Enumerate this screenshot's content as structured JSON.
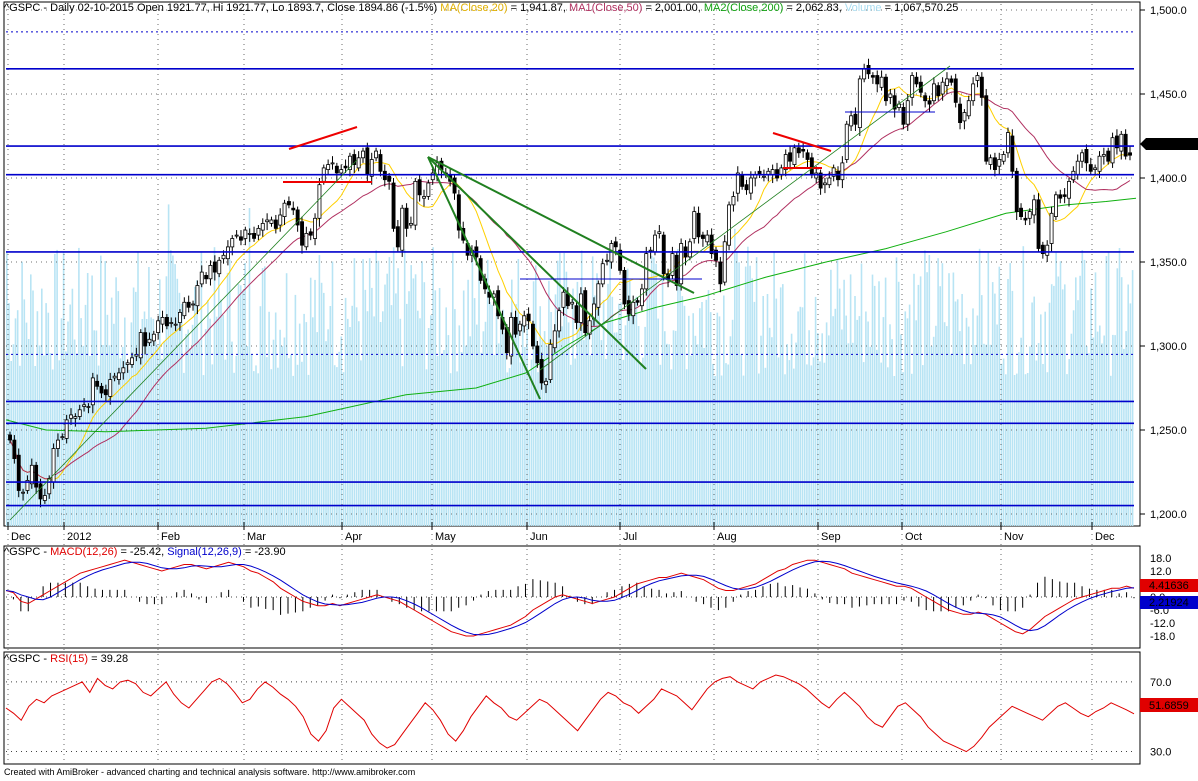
{
  "price_header": {
    "symbol": "^GSPC",
    "desc": "Daily 02-10-2015 Open 1921.77, Hi 1921.77, Lo 1893.7, Close 1894.86 (-1.5%)",
    "ma_label": "MA(Close,20)",
    "ma_value": "= 1,941.87,",
    "ma1_label": "MA1(Close,50)",
    "ma1_value": "= 2,001.00,",
    "ma2_label": "MA2(Close,200)",
    "ma2_value": "= 2,062.83,",
    "vol_label": "Volume",
    "vol_value": "= 1,067,570.25"
  },
  "macd_header": {
    "symbol": "^GSPC -",
    "macd_label": "MACD(12,26)",
    "macd_value": "= -25.42,",
    "signal_label": "Signal(12,26,9)",
    "signal_value": "= -23.90"
  },
  "rsi_header": {
    "symbol": "^GSPC -",
    "rsi_label": "RSI(15)",
    "rsi_value": "= 39.28"
  },
  "footer": "Created with AmiBroker - advanced charting and technical analysis software. http://www.amibroker.com",
  "colors": {
    "price": "#000000",
    "ma20": "#ffd000",
    "ma50": "#b03060",
    "ma200": "#10b010",
    "volume": "#b8e4f4",
    "hline": "#0000cc",
    "macd": "#e00000",
    "signal": "#0000cc",
    "rsi": "#e00000",
    "red_trend": "#ee0000",
    "green_trend": "#208020"
  },
  "chart_data": [
    {
      "type": "candlestick",
      "title": "^GSPC Daily",
      "x_labels": [
        "Dec",
        "2012",
        "Feb",
        "Mar",
        "Apr",
        "May",
        "Jun",
        "Jul",
        "Aug",
        "Sep",
        "Oct",
        "Nov",
        "Dec"
      ],
      "y_ticks": [
        "1,500.0",
        "1,450.0",
        "1,400.0",
        "1,350.0",
        "1,300.0",
        "1,250.0",
        "1,200.0"
      ],
      "ylim": [
        1195,
        1505
      ],
      "last_price": "1,413.58",
      "horizontal_levels": [
        1465,
        1419,
        1402,
        1356,
        1267,
        1254,
        1219,
        1205
      ],
      "dotted_levels": [
        1487,
        1295
      ],
      "closes": [
        1244,
        1233,
        1214,
        1213,
        1220,
        1229,
        1216,
        1209,
        1211,
        1221,
        1239,
        1244,
        1246,
        1256,
        1259,
        1258,
        1262,
        1265,
        1264,
        1281,
        1276,
        1272,
        1271,
        1280,
        1282,
        1284,
        1287,
        1290,
        1293,
        1295,
        1308,
        1300,
        1304,
        1307,
        1315,
        1317,
        1312,
        1314,
        1313,
        1320,
        1326,
        1323,
        1325,
        1336,
        1344,
        1340,
        1348,
        1344,
        1351,
        1354,
        1359,
        1364,
        1366,
        1363,
        1369,
        1367,
        1364,
        1370,
        1373,
        1375,
        1375,
        1370,
        1378,
        1385,
        1384,
        1381,
        1372,
        1360,
        1367,
        1366,
        1376,
        1396,
        1406,
        1408,
        1409,
        1403,
        1405,
        1406,
        1413,
        1408,
        1412,
        1416,
        1402,
        1411,
        1416,
        1404,
        1399,
        1398,
        1370,
        1359,
        1382,
        1370,
        1373,
        1398,
        1390,
        1389,
        1397,
        1403,
        1409,
        1405,
        1402,
        1398,
        1391,
        1369,
        1363,
        1354,
        1357,
        1353,
        1339,
        1334,
        1329,
        1331,
        1318,
        1310,
        1296,
        1317,
        1307,
        1313,
        1318,
        1315,
        1300,
        1290,
        1278,
        1279,
        1301,
        1309,
        1321,
        1332,
        1324,
        1326,
        1314,
        1331,
        1308,
        1315,
        1325,
        1337,
        1349,
        1351,
        1361,
        1359,
        1345,
        1325,
        1319,
        1326,
        1326,
        1334,
        1355,
        1357,
        1366,
        1368,
        1343,
        1340,
        1355,
        1336,
        1361,
        1353,
        1362,
        1380,
        1365,
        1364,
        1366,
        1355,
        1351,
        1337,
        1362,
        1384,
        1389,
        1403,
        1395,
        1393,
        1400,
        1402,
        1402,
        1401,
        1404,
        1405,
        1400,
        1406,
        1414,
        1410,
        1418,
        1415,
        1416,
        1411,
        1402,
        1403,
        1394,
        1397,
        1400,
        1406,
        1399,
        1409,
        1432,
        1437,
        1432,
        1459,
        1465,
        1462,
        1460,
        1456,
        1460,
        1446,
        1450,
        1441,
        1444,
        1432,
        1446,
        1461,
        1456,
        1451,
        1446,
        1444,
        1456,
        1449,
        1457,
        1459,
        1457,
        1445,
        1433,
        1439,
        1446,
        1456,
        1461,
        1448,
        1410,
        1412,
        1405,
        1411,
        1414,
        1427,
        1404,
        1380,
        1377,
        1375,
        1380,
        1387,
        1358,
        1355,
        1360,
        1379,
        1390,
        1388,
        1389,
        1398,
        1404,
        1410,
        1415,
        1409,
        1404,
        1406,
        1413,
        1414,
        1410,
        1424,
        1418,
        1426,
        1413,
        1413.58
      ],
      "ma200_points": [
        [
          0,
          1256
        ],
        [
          40,
          1250
        ],
        [
          100,
          1249
        ],
        [
          200,
          1251
        ],
        [
          300,
          1258
        ],
        [
          400,
          1271
        ],
        [
          470,
          1275
        ],
        [
          520,
          1284
        ],
        [
          560,
          1300
        ],
        [
          600,
          1314
        ],
        [
          650,
          1323
        ],
        [
          700,
          1330
        ],
        [
          760,
          1341
        ],
        [
          820,
          1350
        ],
        [
          880,
          1358
        ],
        [
          940,
          1368
        ],
        [
          1000,
          1379
        ],
        [
          1060,
          1384
        ],
        [
          1100,
          1386
        ],
        [
          1130,
          1388
        ]
      ]
    },
    {
      "type": "bar",
      "title": "Volume",
      "note": "light blue volume histogram behind price"
    },
    {
      "type": "line",
      "title": "MACD(12,26), Signal(12,26,9)",
      "y_ticks": [
        "18.0",
        "12.0",
        "6.0",
        "0.0",
        "-6.0",
        "-12.0",
        "-18.0"
      ],
      "ylim": [
        -21,
        21
      ],
      "last_macd": "4.41636",
      "last_signal": "2.21924",
      "macd": [
        3,
        2,
        -2,
        -3,
        -1,
        1,
        3,
        5,
        7,
        9,
        11,
        12,
        13,
        14,
        15,
        16,
        17,
        16,
        15,
        14,
        13,
        12,
        13,
        14,
        15,
        15,
        14,
        13,
        14,
        15,
        16,
        15,
        14,
        12,
        11,
        9,
        7,
        4,
        2,
        0,
        -2,
        -3,
        -4,
        -4,
        -3,
        -4,
        -3,
        -2,
        -1,
        0,
        1,
        0,
        -1,
        -2,
        -4,
        -6,
        -8,
        -10,
        -12,
        -14,
        -16,
        -17,
        -18,
        -18,
        -17,
        -16,
        -15,
        -14,
        -13,
        -11,
        -9,
        -6,
        -4,
        -2,
        0,
        1,
        0,
        -1,
        -2,
        -3,
        -2,
        -1,
        0,
        2,
        4,
        6,
        7,
        8,
        9,
        9,
        10,
        11,
        10,
        9,
        8,
        6,
        4,
        3,
        3,
        4,
        5,
        6,
        8,
        10,
        12,
        13,
        15,
        16,
        17,
        17,
        16,
        15,
        14,
        13,
        11,
        10,
        9,
        8,
        7,
        6,
        5,
        5,
        4,
        2,
        0,
        -2,
        -4,
        -6,
        -7,
        -8,
        -8,
        -7,
        -8,
        -10,
        -12,
        -14,
        -16,
        -17,
        -15,
        -12,
        -9,
        -7,
        -5,
        -3,
        -1,
        0,
        1,
        2,
        3,
        4,
        4,
        5,
        4
      ]
    },
    {
      "type": "line",
      "title": "RSI(15)",
      "y_ticks": [
        "70.0",
        "30.0"
      ],
      "ylim": [
        22,
        80
      ],
      "last_value": "51.6859",
      "values": [
        55,
        52,
        48,
        56,
        60,
        58,
        62,
        64,
        66,
        68,
        70,
        64,
        72,
        68,
        66,
        70,
        71,
        69,
        64,
        62,
        66,
        70,
        63,
        58,
        55,
        60,
        65,
        70,
        72,
        69,
        64,
        58,
        60,
        66,
        70,
        67,
        63,
        60,
        56,
        50,
        40,
        36,
        42,
        55,
        60,
        56,
        52,
        48,
        40,
        35,
        32,
        34,
        40,
        46,
        52,
        58,
        54,
        48,
        40,
        36,
        42,
        50,
        56,
        62,
        58,
        55,
        50,
        48,
        52,
        56,
        60,
        58,
        54,
        50,
        46,
        42,
        48,
        54,
        60,
        64,
        62,
        58,
        56,
        52,
        56,
        60,
        66,
        64,
        62,
        58,
        54,
        60,
        66,
        70,
        72,
        73,
        70,
        68,
        66,
        70,
        72,
        74,
        73,
        71,
        69,
        66,
        62,
        58,
        55,
        60,
        64,
        60,
        56,
        50,
        46,
        44,
        50,
        56,
        58,
        54,
        50,
        44,
        40,
        36,
        34,
        32,
        30,
        33,
        38,
        44,
        48,
        52,
        56,
        54,
        52,
        50,
        48,
        52,
        56,
        58,
        55,
        52,
        50,
        53,
        55,
        58,
        56,
        54,
        51.7
      ]
    }
  ]
}
